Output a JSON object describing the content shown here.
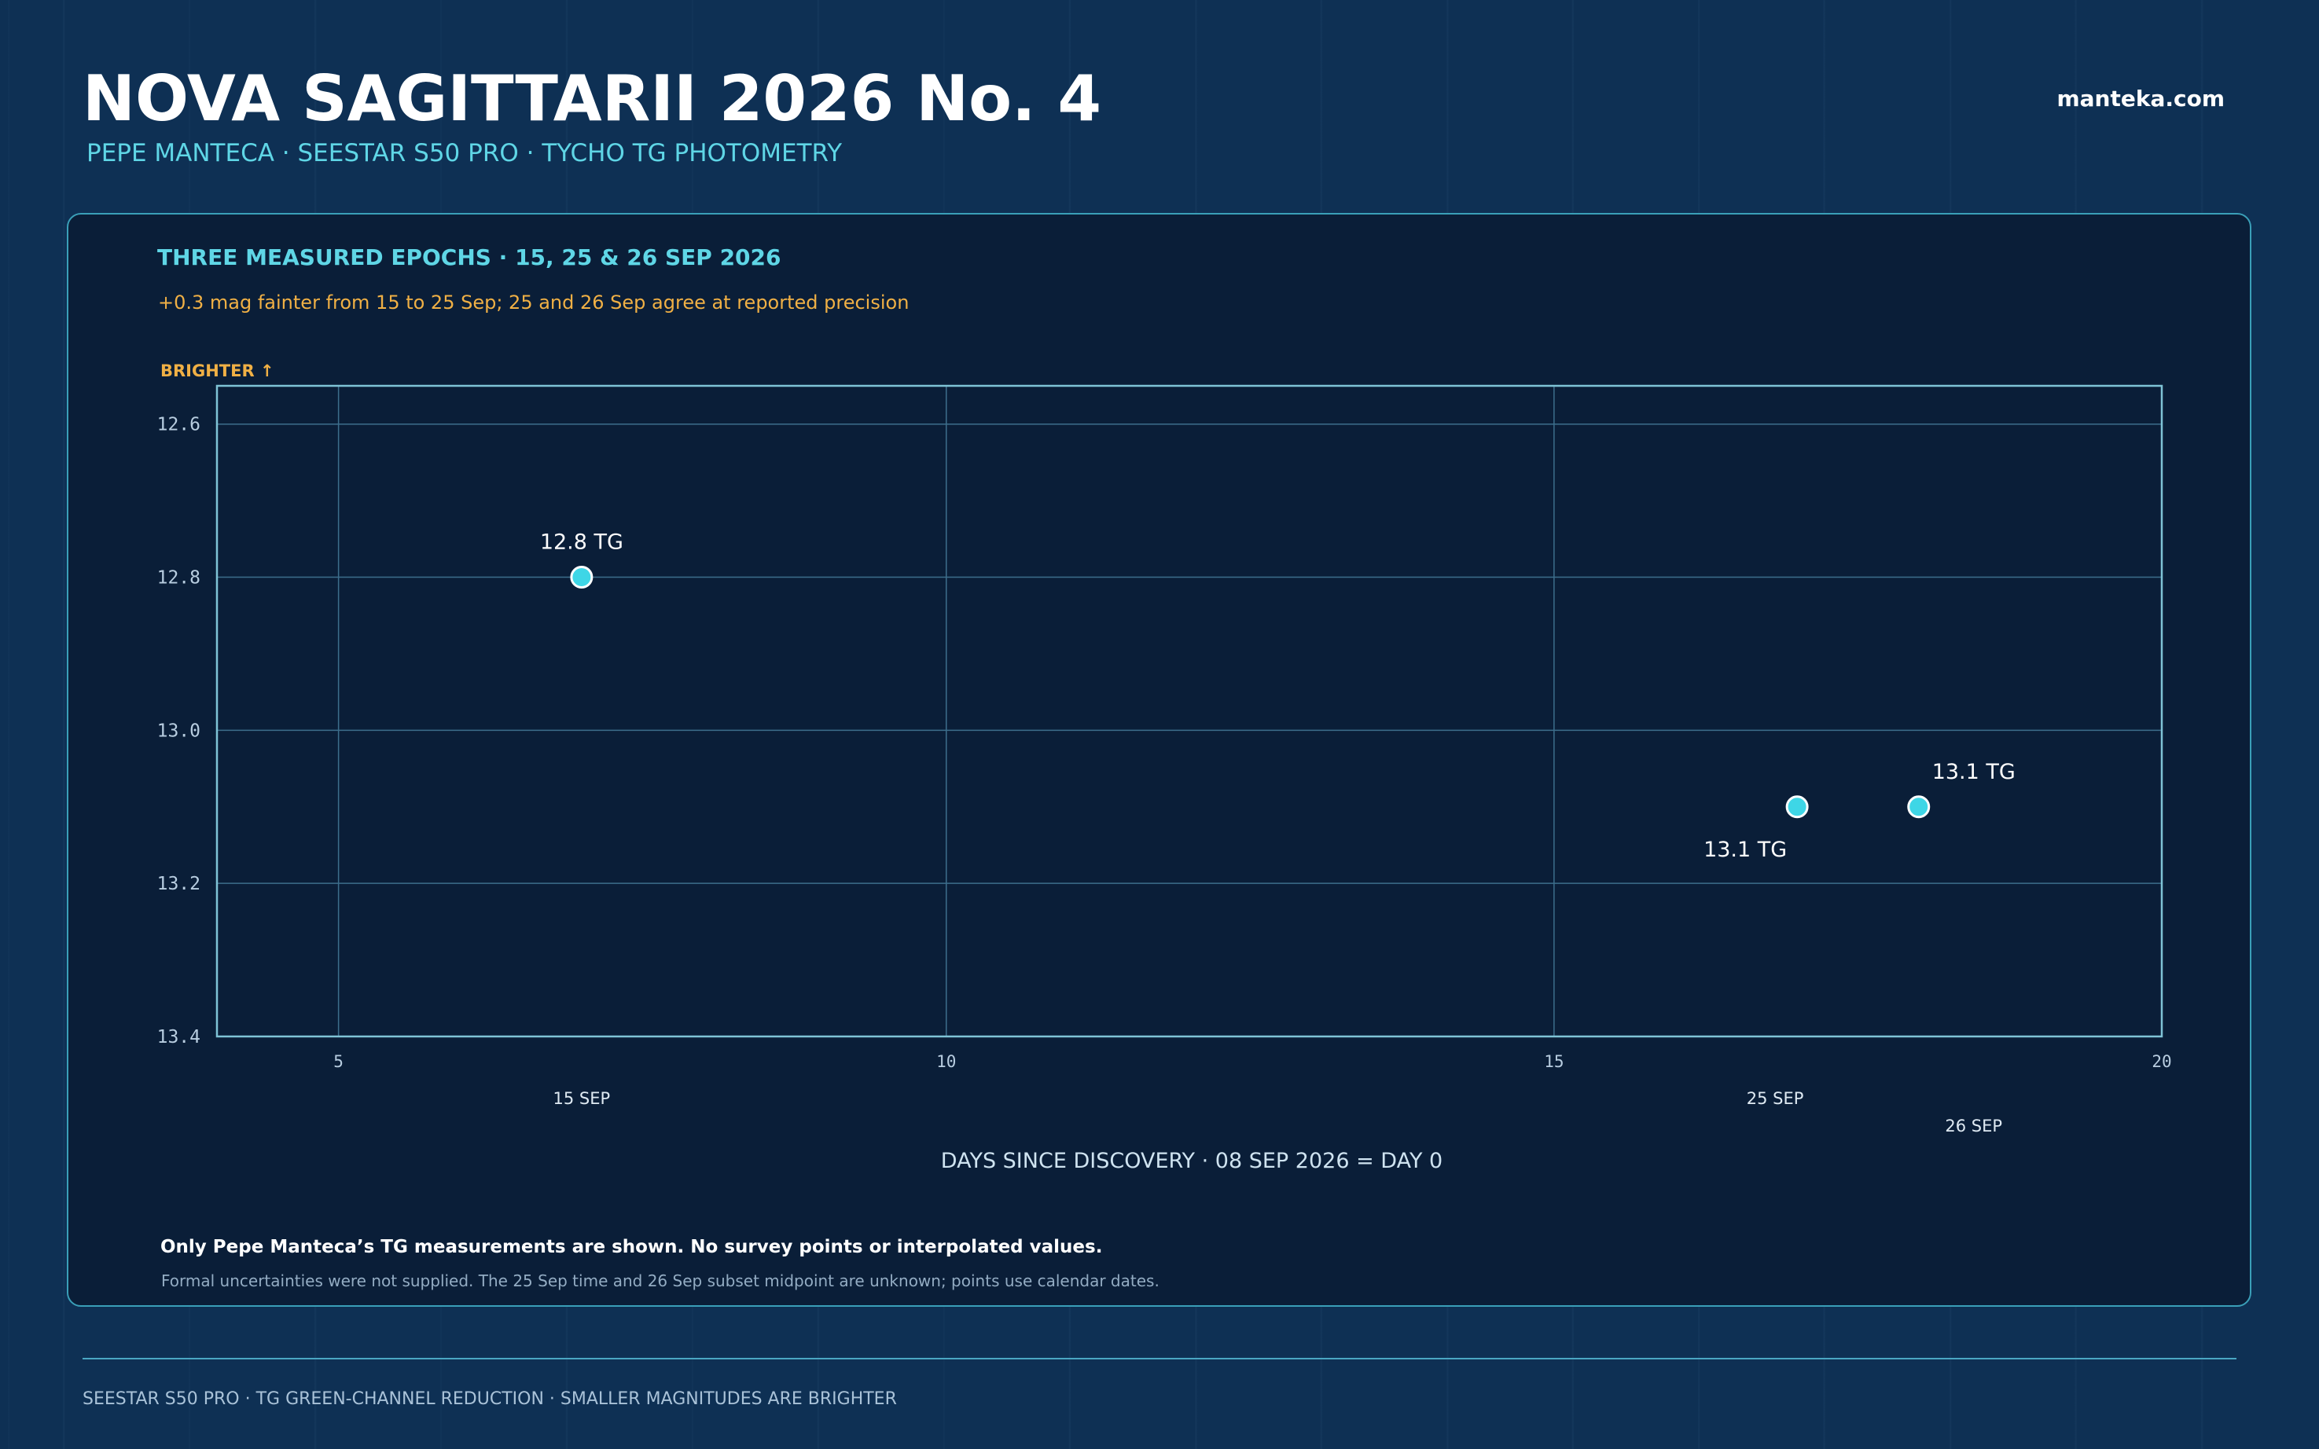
{
  "header": {
    "title": "NOVA SAGITTARII 2026 No. 4",
    "subtitle": "PEPE MANTECA · SEESTAR S50 PRO · TYCHO TG PHOTOMETRY",
    "site": "manteka.com"
  },
  "panel": {
    "headline": "THREE MEASURED EPOCHS · 15, 25 & 26 SEP 2026",
    "note": "+0.3 mag fainter from 15 to 25 Sep; 25 and 26 Sep agree at reported precision",
    "footnote_main": "Only Pepe Manteca’s TG measurements are shown. No survey points or interpolated values.",
    "footnote_detail": "Formal uncertainties were not supplied. The 25 Sep time and 26 Sep subset midpoint are unknown; points use calendar dates."
  },
  "footer": {
    "text": "SEESTAR S50 PRO · TG GREEN-CHANNEL REDUCTION · SMALLER MAGNITUDES ARE BRIGHTER"
  },
  "colors": {
    "accent": "#5fd6e6",
    "warning": "#f0b045",
    "point_fill": "#3ed6e6",
    "grid": "#3d6e8c",
    "frame": "#7fc3d6"
  },
  "chart_data": {
    "type": "scatter",
    "xlabel": "DAYS SINCE DISCOVERY · 08 SEP 2026 = DAY 0",
    "ylabel": "BRIGHTER ↑",
    "xlim": [
      4,
      20
    ],
    "ylim": [
      13.4,
      12.55
    ],
    "y_inverted": true,
    "x_ticks": [
      5,
      10,
      15,
      20
    ],
    "x_tick_labels": [
      "5",
      "10",
      "15",
      "20"
    ],
    "y_ticks": [
      12.6,
      12.8,
      13.0,
      13.2,
      13.4
    ],
    "y_tick_labels": [
      "12.6",
      "12.8",
      "13.0",
      "13.2",
      "13.4"
    ],
    "grid": true,
    "points": [
      {
        "date": "15 SEP",
        "x": 7,
        "y": 12.8,
        "label": "12.8 TG"
      },
      {
        "date": "25 SEP",
        "x": 17,
        "y": 13.1,
        "label": "13.1 TG"
      },
      {
        "date": "26 SEP",
        "x": 18,
        "y": 13.1,
        "label": "13.1 TG"
      }
    ]
  }
}
